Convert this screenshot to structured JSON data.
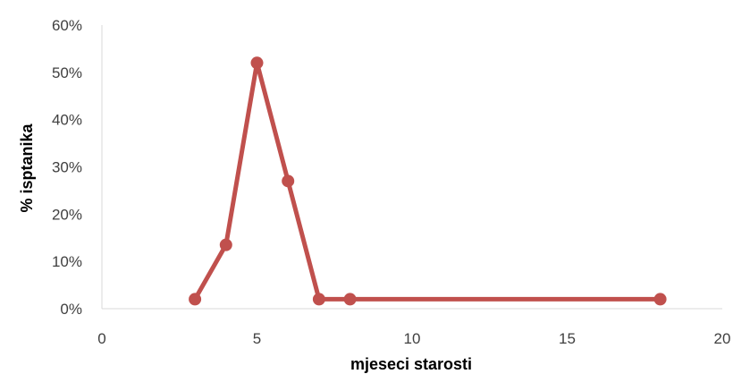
{
  "chart_data": {
    "type": "scatter",
    "title": "",
    "xlabel": "mjeseci starosti",
    "ylabel": "% isptanika",
    "xlim": [
      0,
      20
    ],
    "ylim": [
      0,
      60
    ],
    "x_ticks": [
      0,
      5,
      10,
      15,
      20
    ],
    "x_tick_labels": [
      "0",
      "5",
      "10",
      "15",
      "20"
    ],
    "y_ticks": [
      0,
      10,
      20,
      30,
      40,
      50,
      60
    ],
    "y_tick_labels": [
      "0%",
      "10%",
      "20%",
      "30%",
      "40%",
      "50%",
      "60%"
    ],
    "y_unit": "%",
    "grid": false,
    "legend": "none",
    "series": [
      {
        "color": "#C0504D",
        "lines_and_markers": true,
        "points": [
          {
            "x": 3,
            "y": 2
          },
          {
            "x": 4,
            "y": 13.5
          },
          {
            "x": 5,
            "y": 52
          },
          {
            "x": 6,
            "y": 27
          },
          {
            "x": 7,
            "y": 2
          },
          {
            "x": 8,
            "y": 2
          },
          {
            "x": 18,
            "y": 2
          }
        ]
      }
    ]
  }
}
